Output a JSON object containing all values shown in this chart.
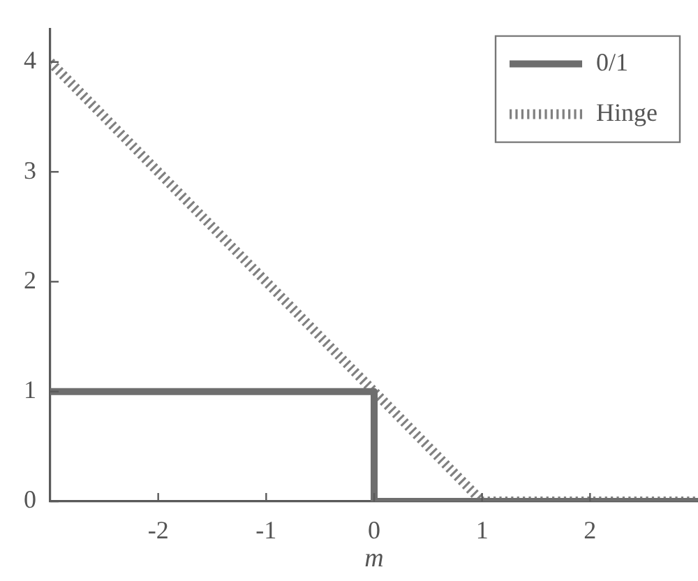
{
  "chart_data": {
    "type": "line",
    "xlabel": "m",
    "xlim": [
      -3,
      3
    ],
    "xticks": [
      -2,
      -1,
      0,
      1,
      2
    ],
    "ylim": [
      0,
      4.3
    ],
    "yticks": [
      0,
      1,
      2,
      3,
      4
    ],
    "legend": "top right",
    "series": [
      {
        "name": "0/1",
        "color": "#6e6e6e",
        "line_style": "solid",
        "x": [
          -3,
          0,
          0,
          3
        ],
        "values": [
          1,
          1,
          0,
          0
        ]
      },
      {
        "name": "Hinge",
        "color": "#808080",
        "line_style": "dotted",
        "x": [
          -3,
          1,
          3
        ],
        "values": [
          4,
          0,
          0
        ]
      }
    ]
  }
}
